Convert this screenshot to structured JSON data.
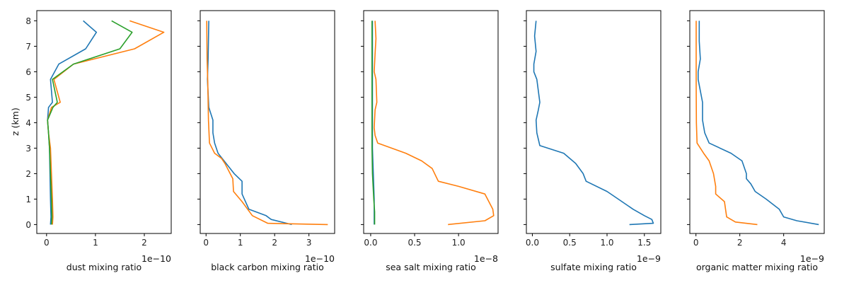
{
  "figure": {
    "ylabel": "z (km)"
  },
  "chart_data": [
    {
      "type": "line",
      "xlabel": "dust mixing ratio",
      "offset_text": "1e−10",
      "x_scale": 1e-10,
      "xlim": [
        -2e-11,
        2.55e-10
      ],
      "xticks": [
        0,
        1e-10,
        2e-10
      ],
      "xtick_labels": [
        "0",
        "1",
        "2"
      ],
      "ylim": [
        -0.35,
        8.4
      ],
      "yticks": [
        0,
        1,
        2,
        3,
        4,
        5,
        6,
        7,
        8
      ],
      "ytick_labels": [
        "0",
        "1",
        "2",
        "3",
        "4",
        "5",
        "6",
        "7",
        "8"
      ],
      "series": [
        {
          "color": "#1f77b4",
          "x": [
            8e-12,
            9e-12,
            8e-12,
            7e-12,
            6e-12,
            4e-12,
            2e-12,
            4e-12,
            1.2e-11,
            8e-12,
            2.5e-11,
            8e-11,
            1.02e-10,
            7.5e-11
          ],
          "y": [
            0,
            0.3,
            1,
            2,
            3,
            3.6,
            4.1,
            4.6,
            4.8,
            5.7,
            6.3,
            6.9,
            7.55,
            8
          ]
        },
        {
          "color": "#ff7f0e",
          "x": [
            1.2e-11,
            1.3e-11,
            1.2e-11,
            1e-11,
            8e-12,
            4e-12,
            2e-12,
            1e-11,
            2.8e-11,
            1.5e-11,
            5.5e-11,
            1.8e-10,
            2.4e-10,
            1.7e-10
          ],
          "y": [
            0,
            0.3,
            1,
            2,
            3,
            3.6,
            4.1,
            4.6,
            4.8,
            5.7,
            6.3,
            6.9,
            7.55,
            8
          ]
        },
        {
          "color": "#2ca02c",
          "x": [
            1e-11,
            1.1e-11,
            1e-11,
            8e-12,
            6e-12,
            4e-12,
            2e-12,
            1.3e-11,
            2.2e-11,
            1.2e-11,
            5.5e-11,
            1.5e-10,
            1.75e-10,
            1.33e-10
          ],
          "y": [
            0,
            0.3,
            1,
            2,
            3,
            3.6,
            4.1,
            4.6,
            4.8,
            5.7,
            6.3,
            6.9,
            7.55,
            8
          ]
        }
      ]
    },
    {
      "type": "line",
      "xlabel": "black carbon mixing ratio",
      "offset_text": "1e−10",
      "x_scale": 1e-10,
      "xlim": [
        -1.7e-11,
        3.75e-10
      ],
      "xticks": [
        0,
        1e-10,
        2e-10,
        3e-10
      ],
      "xtick_labels": [
        "0",
        "1",
        "2",
        "3"
      ],
      "ylim": [
        -0.35,
        8.4
      ],
      "yticks": [
        0,
        1,
        2,
        3,
        4,
        5,
        6,
        7,
        8
      ],
      "series": [
        {
          "color": "#1f77b4",
          "x": [
            2.5e-10,
            1.9e-10,
            1.75e-10,
            1.25e-10,
            1.05e-10,
            1.05e-10,
            8.2e-11,
            3.5e-11,
            2.5e-11,
            2e-11,
            2e-11,
            8e-12,
            4e-12,
            6e-12,
            8e-12
          ],
          "y": [
            0,
            0.2,
            0.35,
            0.6,
            1.2,
            1.7,
            2.0,
            2.8,
            3.2,
            3.6,
            4.1,
            4.6,
            5.7,
            6.5,
            8
          ]
        },
        {
          "color": "#ff7f0e",
          "x": [
            3.55e-10,
            1.8e-10,
            1.35e-10,
            1.05e-10,
            8e-11,
            7.8e-11,
            5.5e-11,
            4.5e-11,
            2.5e-11,
            1e-11,
            7e-12,
            5e-12,
            3e-12,
            2e-12
          ],
          "y": [
            0,
            0.05,
            0.35,
            0.9,
            1.3,
            1.8,
            2.4,
            2.6,
            2.8,
            3.2,
            4.1,
            5.6,
            6.5,
            8
          ]
        }
      ]
    },
    {
      "type": "line",
      "xlabel": "sea salt mixing ratio",
      "offset_text": "1e−8",
      "x_scale": 1e-08,
      "xlim": [
        -8e-10,
        1.45e-08
      ],
      "xticks": [
        0,
        5e-09,
        1e-08
      ],
      "xtick_labels": [
        "0.0",
        "0.5",
        "1.0"
      ],
      "ylim": [
        -0.35,
        8.4
      ],
      "yticks": [
        0,
        1,
        2,
        3,
        4,
        5,
        6,
        7,
        8
      ],
      "series": [
        {
          "color": "#ff7f0e",
          "x": [
            8.8e-09,
            1.3e-08,
            1.4e-08,
            1.39e-08,
            1.3e-08,
            1e-08,
            7.7e-09,
            7e-09,
            5.8e-09,
            4e-09,
            8e-10,
            5e-10,
            4e-10,
            5e-10,
            7e-10,
            6e-10,
            4e-10,
            5e-10,
            6e-10,
            5e-10
          ],
          "y": [
            0,
            0.15,
            0.35,
            0.6,
            1.2,
            1.5,
            1.7,
            2.2,
            2.5,
            2.8,
            3.2,
            3.5,
            3.8,
            4.5,
            4.8,
            5.7,
            6.0,
            6.7,
            7.3,
            8
          ]
        },
        {
          "color": "#1f77b4",
          "x": [
            4e-10,
            4e-10,
            3e-10,
            2e-10,
            2e-10,
            2e-10,
            2e-10
          ],
          "y": [
            0,
            1,
            2,
            3,
            4,
            6,
            8
          ]
        },
        {
          "color": "#2ca02c",
          "x": [
            4.5e-10,
            4.5e-10,
            3.5e-10,
            2e-10,
            1.5e-10,
            1.5e-10,
            1.5e-10,
            1.5e-10
          ],
          "y": [
            0,
            0.5,
            1,
            2,
            3,
            4,
            6,
            8
          ]
        }
      ]
    },
    {
      "type": "line",
      "xlabel": "sulfate mixing ratio",
      "offset_text": "1e−9",
      "x_scale": 1e-09,
      "xlim": [
        -8e-11,
        1.72e-09
      ],
      "xticks": [
        0,
        5e-10,
        1e-09,
        1.5e-09
      ],
      "xtick_labels": [
        "0.0",
        "0.5",
        "1.0",
        "1.5"
      ],
      "ylim": [
        -0.35,
        8.4
      ],
      "yticks": [
        0,
        1,
        2,
        3,
        4,
        5,
        6,
        7,
        8
      ],
      "series": [
        {
          "color": "#1f77b4",
          "x": [
            1.3e-09,
            1.62e-09,
            1.6e-09,
            1.5e-09,
            1.35e-09,
            1.15e-09,
            1e-09,
            7.2e-10,
            6.8e-10,
            5.8e-10,
            4.2e-10,
            1e-10,
            6e-11,
            5e-11,
            8e-11,
            1e-10,
            6e-11,
            2e-11,
            2e-11,
            5e-11,
            3e-11,
            5e-11
          ],
          "y": [
            0,
            0.05,
            0.2,
            0.35,
            0.6,
            1.0,
            1.3,
            1.7,
            2.0,
            2.4,
            2.8,
            3.1,
            3.6,
            4.1,
            4.5,
            4.8,
            5.7,
            6.0,
            6.3,
            6.8,
            7.4,
            8
          ]
        }
      ]
    },
    {
      "type": "line",
      "xlabel": "organic matter mixing ratio",
      "offset_text": "1e−9",
      "x_scale": 1e-09,
      "xlim": [
        -2.8e-10,
        5.85e-09
      ],
      "xticks": [
        0,
        2e-09,
        4e-09
      ],
      "xtick_labels": [
        "0",
        "2",
        "4"
      ],
      "ylim": [
        -0.35,
        8.4
      ],
      "yticks": [
        0,
        1,
        2,
        3,
        4,
        5,
        6,
        7,
        8
      ],
      "series": [
        {
          "color": "#1f77b4",
          "x": [
            5.6e-09,
            4.6e-09,
            4e-09,
            3.8e-09,
            3.2e-09,
            2.7e-09,
            2.5e-09,
            2.3e-09,
            2.3e-09,
            2.1e-09,
            1.6e-09,
            6e-10,
            4e-10,
            3e-10,
            3e-10,
            3e-10,
            1e-10,
            1e-10,
            2e-10,
            1.5e-10,
            1.5e-10
          ],
          "y": [
            0,
            0.15,
            0.3,
            0.6,
            1.0,
            1.3,
            1.6,
            1.8,
            2.0,
            2.5,
            2.8,
            3.2,
            3.6,
            4.1,
            4.5,
            4.8,
            5.7,
            6.0,
            6.5,
            7.2,
            8
          ]
        },
        {
          "color": "#ff7f0e",
          "x": [
            2.8e-09,
            1.8e-09,
            1.4e-09,
            1.3e-09,
            9e-10,
            9e-10,
            8e-10,
            6e-10,
            3.5e-10,
            5e-11,
            2e-11,
            1e-11,
            1e-11,
            1e-11
          ],
          "y": [
            0,
            0.1,
            0.3,
            0.9,
            1.2,
            1.5,
            2.0,
            2.5,
            2.8,
            3.2,
            4.0,
            5.5,
            6.5,
            8
          ]
        }
      ]
    }
  ]
}
